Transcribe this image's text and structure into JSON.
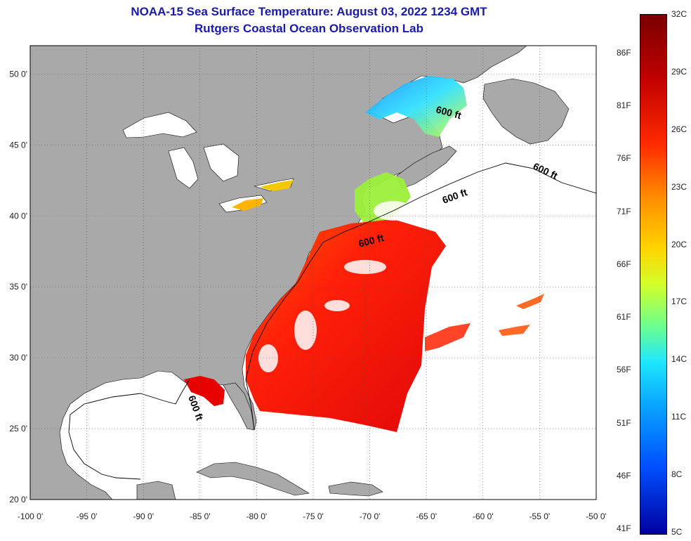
{
  "title": "NOAA-15 Sea Surface Temperature:  August 03, 2022 1234 GMT",
  "subtitle": "Rutgers Coastal Ocean Observation Lab",
  "map": {
    "lon_range": [
      -100,
      -50
    ],
    "lat_range": [
      20,
      52
    ],
    "lon_ticks": [
      {
        "lon": -100,
        "label": "-100 0'"
      },
      {
        "lon": -95,
        "label": "-95 0'"
      },
      {
        "lon": -90,
        "label": "-90 0'"
      },
      {
        "lon": -85,
        "label": "-85 0'"
      },
      {
        "lon": -80,
        "label": "-80 0'"
      },
      {
        "lon": -75,
        "label": "-75 0'"
      },
      {
        "lon": -70,
        "label": "-70 0'"
      },
      {
        "lon": -65,
        "label": "-65 0'"
      },
      {
        "lon": -60,
        "label": "-60 0'"
      },
      {
        "lon": -55,
        "label": "-55 0'"
      },
      {
        "lon": -50,
        "label": "-50 0'"
      }
    ],
    "lat_ticks": [
      {
        "lat": 50,
        "label": "50 0'"
      },
      {
        "lat": 45,
        "label": "45 0'"
      },
      {
        "lat": 40,
        "label": "40 0'"
      },
      {
        "lat": 35,
        "label": "35 0'"
      },
      {
        "lat": 30,
        "label": "30 0'"
      },
      {
        "lat": 25,
        "label": "25 0'"
      },
      {
        "lat": 20,
        "label": "20 0'"
      }
    ],
    "contour_labels": [
      "600 ft",
      "600 ft",
      "600 ft",
      "600 ft",
      "600 ft"
    ],
    "land_color": "#a9a9a9",
    "ocean_color": "#ffffff"
  },
  "colorbar": {
    "celsius": [
      "32C",
      "29C",
      "26C",
      "23C",
      "20C",
      "17C",
      "14C",
      "11C",
      "8C",
      "5C"
    ],
    "fahrenheit": [
      "86F",
      "81F",
      "76F",
      "71F",
      "66F",
      "61F",
      "56F",
      "51F",
      "46F",
      "41F"
    ]
  }
}
